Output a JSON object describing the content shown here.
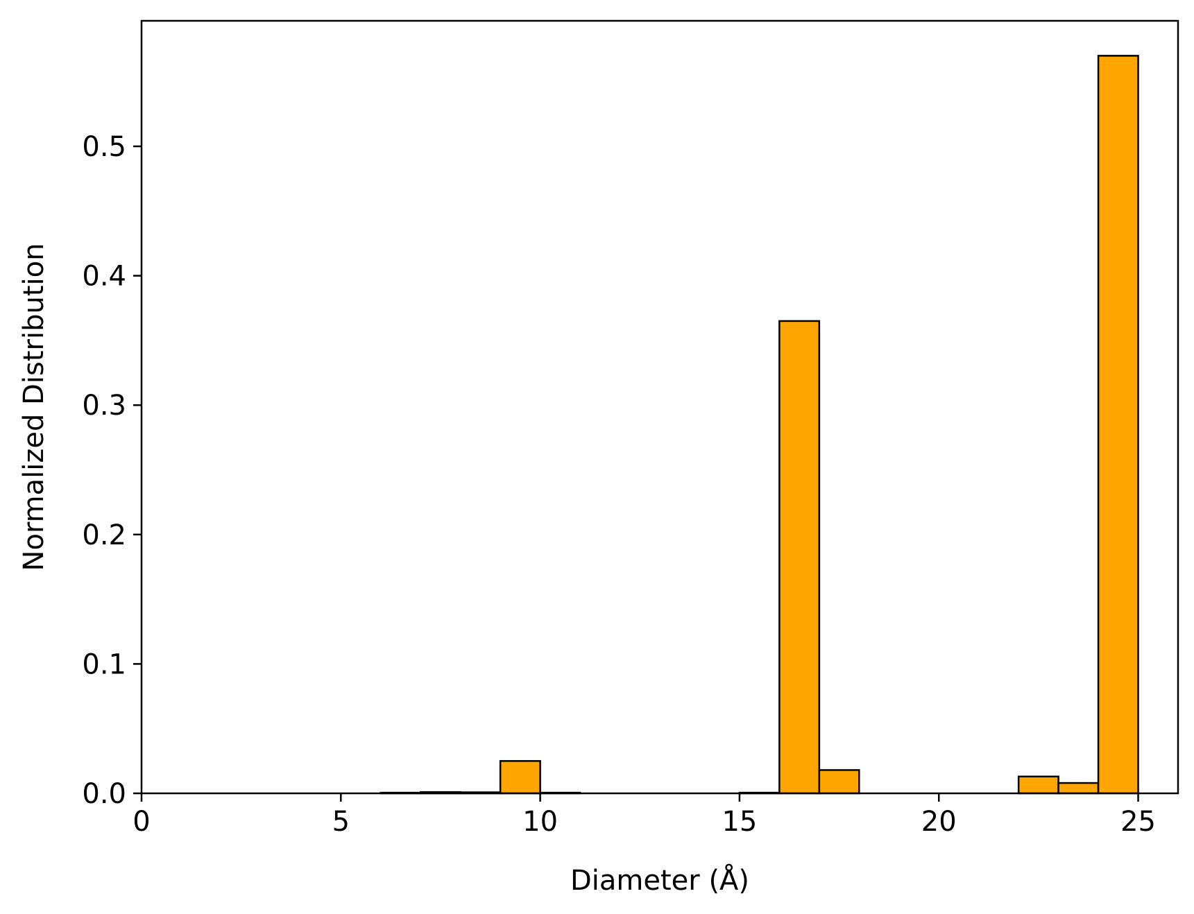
{
  "chart_data": {
    "type": "bar",
    "xlabel": "Diameter (Å)",
    "ylabel": "Normalized Distribution",
    "xlim": [
      0,
      26
    ],
    "ylim": [
      0,
      0.597
    ],
    "xticks": [
      0,
      5,
      10,
      15,
      20,
      25
    ],
    "xtick_labels": [
      "0",
      "5",
      "10",
      "15",
      "20",
      "25"
    ],
    "yticks": [
      0.0,
      0.1,
      0.2,
      0.3,
      0.4,
      0.5
    ],
    "ytick_labels": [
      "0.0",
      "0.1",
      "0.2",
      "0.3",
      "0.4",
      "0.5"
    ],
    "grid": false,
    "bar_color": "#FFA500",
    "edge_color": "#000000",
    "bins": [
      {
        "x0": 6,
        "x1": 7,
        "value": 0.0005
      },
      {
        "x0": 7,
        "x1": 8,
        "value": 0.001
      },
      {
        "x0": 8,
        "x1": 9,
        "value": 0.0008
      },
      {
        "x0": 9,
        "x1": 10,
        "value": 0.025
      },
      {
        "x0": 10,
        "x1": 11,
        "value": 0.0005
      },
      {
        "x0": 15,
        "x1": 16,
        "value": 0.0005
      },
      {
        "x0": 16,
        "x1": 17,
        "value": 0.365
      },
      {
        "x0": 17,
        "x1": 18,
        "value": 0.018
      },
      {
        "x0": 22,
        "x1": 23,
        "value": 0.013
      },
      {
        "x0": 23,
        "x1": 24,
        "value": 0.008
      },
      {
        "x0": 24,
        "x1": 25,
        "value": 0.57
      }
    ]
  }
}
